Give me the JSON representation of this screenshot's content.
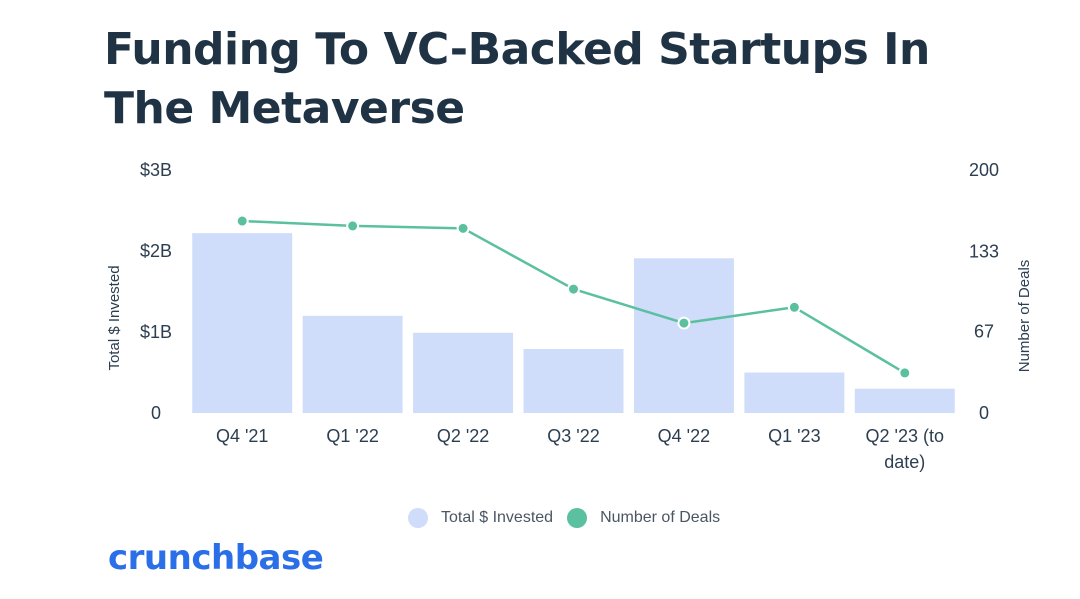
{
  "chart_data": {
    "type": "bar",
    "title": "Funding To VC-Backed Startups In The Metaverse",
    "categories": [
      "Q4 '21",
      "Q1 '22",
      "Q2 '22",
      "Q3 '22",
      "Q4 '22",
      "Q1 '23",
      "Q2 '23 (to date)"
    ],
    "series": [
      {
        "name": "Total $ Invested",
        "type": "bar",
        "axis": "left",
        "color": "#cfdcfa",
        "values": [
          2.22,
          1.2,
          0.99,
          0.79,
          1.91,
          0.5,
          0.3
        ]
      },
      {
        "name": "Number of Deals",
        "type": "line",
        "axis": "right",
        "color": "#5ac0a0",
        "values": [
          158,
          154,
          152,
          102,
          74,
          87,
          33
        ]
      }
    ],
    "y_left": {
      "label": "Total $ Invested",
      "range": [
        0,
        3
      ],
      "ticks": [
        0,
        1,
        2,
        3
      ],
      "tick_labels": [
        "0",
        "$1B",
        "$2B",
        "$3B"
      ]
    },
    "y_right": {
      "label": "Number of Deals",
      "range": [
        0,
        200
      ],
      "ticks": [
        0,
        67,
        133,
        200
      ],
      "tick_labels": [
        "0",
        "67",
        "133",
        "200"
      ]
    },
    "grid": false,
    "legend": "bottom-center"
  },
  "brand": {
    "logo_text": "crunchbase",
    "logo_color": "#2a6ee8",
    "title_color": "#1f3344"
  }
}
